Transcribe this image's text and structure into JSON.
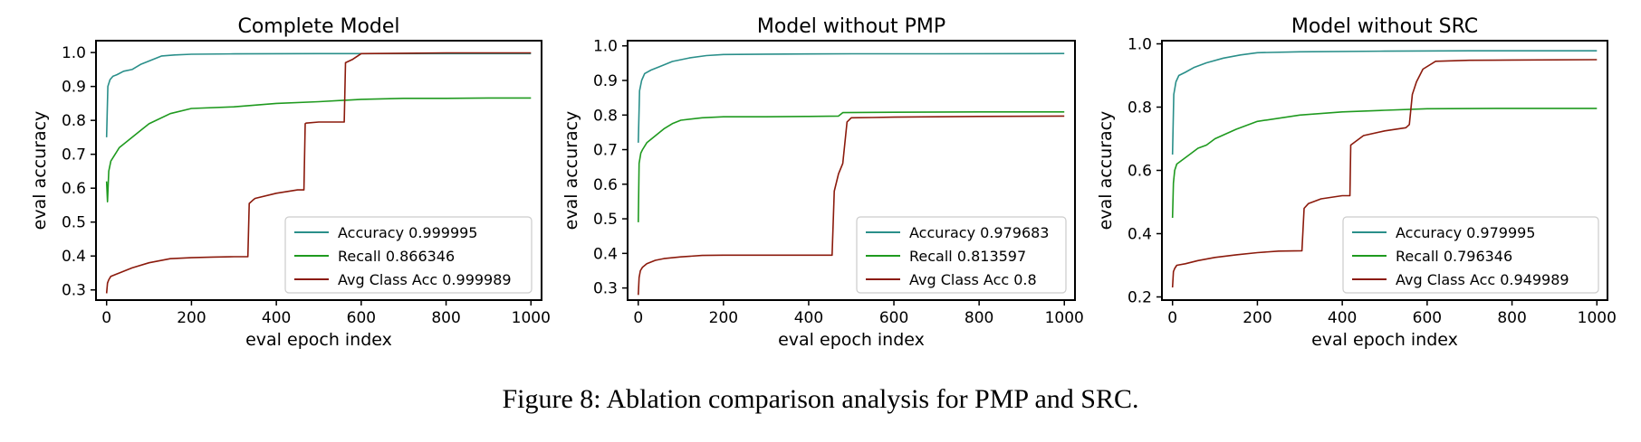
{
  "caption": "Figure 8: Ablation comparison analysis for PMP and SRC.",
  "colors": {
    "accuracy": "#2a8f8a",
    "recall": "#1f9a1f",
    "avg_class": "#8b1a0c"
  },
  "chart_data": [
    {
      "type": "line",
      "title": "Complete Model",
      "xlabel": "eval epoch index",
      "ylabel": "eval accuracy",
      "xlim": [
        -25,
        1025
      ],
      "ylim": [
        0.27,
        1.035
      ],
      "xticks": [
        0,
        200,
        400,
        600,
        800,
        1000
      ],
      "yticks": [
        0.3,
        0.4,
        0.5,
        0.6,
        0.7,
        0.8,
        0.9,
        1.0
      ],
      "ytick_labels": [
        "0.3",
        "0.4",
        "0.5",
        "0.6",
        "0.7",
        "0.8",
        "0.9",
        "1.0"
      ],
      "grid": false,
      "legend_position": "lower-right",
      "series": [
        {
          "name": "Accuracy",
          "final": "0.999995",
          "color": "#2a8f8a",
          "x": [
            0,
            3,
            8,
            15,
            25,
            40,
            60,
            80,
            100,
            130,
            160,
            200,
            300,
            500,
            700,
            1000
          ],
          "y": [
            0.75,
            0.9,
            0.92,
            0.93,
            0.935,
            0.945,
            0.95,
            0.965,
            0.975,
            0.99,
            0.993,
            0.995,
            0.996,
            0.997,
            0.997,
            0.997
          ]
        },
        {
          "name": "Recall",
          "final": "0.866346",
          "color": "#1f9a1f",
          "x": [
            0,
            2,
            5,
            10,
            20,
            30,
            50,
            80,
            100,
            150,
            200,
            300,
            400,
            500,
            600,
            700,
            800,
            900,
            1000
          ],
          "y": [
            0.62,
            0.56,
            0.65,
            0.68,
            0.7,
            0.72,
            0.74,
            0.77,
            0.79,
            0.82,
            0.835,
            0.84,
            0.85,
            0.855,
            0.862,
            0.865,
            0.865,
            0.866,
            0.866
          ]
        },
        {
          "name": "Avg Class Acc",
          "final": "0.999989",
          "color": "#8b1a0c",
          "x": [
            0,
            2,
            5,
            10,
            30,
            60,
            100,
            150,
            200,
            250,
            300,
            333,
            336,
            345,
            350,
            400,
            450,
            465,
            468,
            470,
            500,
            560,
            563,
            580,
            600,
            700,
            800,
            900,
            1000
          ],
          "y": [
            0.29,
            0.32,
            0.33,
            0.34,
            0.35,
            0.365,
            0.38,
            0.392,
            0.395,
            0.397,
            0.398,
            0.398,
            0.555,
            0.565,
            0.57,
            0.585,
            0.595,
            0.595,
            0.79,
            0.792,
            0.795,
            0.795,
            0.97,
            0.98,
            0.997,
            0.998,
            0.999,
            0.999,
            0.999
          ]
        }
      ]
    },
    {
      "type": "line",
      "title": "Model without PMP",
      "xlabel": "eval epoch index",
      "ylabel": "eval accuracy",
      "xlim": [
        -25,
        1025
      ],
      "ylim": [
        0.265,
        1.015
      ],
      "xticks": [
        0,
        200,
        400,
        600,
        800,
        1000
      ],
      "yticks": [
        0.3,
        0.4,
        0.5,
        0.6,
        0.7,
        0.8,
        0.9,
        1.0
      ],
      "ytick_labels": [
        "0.3",
        "0.4",
        "0.5",
        "0.6",
        "0.7",
        "0.8",
        "0.9",
        "1.0"
      ],
      "grid": false,
      "legend_position": "lower-right",
      "series": [
        {
          "name": "Accuracy",
          "final": "0.979683",
          "color": "#2a8f8a",
          "x": [
            0,
            3,
            8,
            15,
            30,
            50,
            80,
            120,
            160,
            200,
            300,
            500,
            700,
            1000
          ],
          "y": [
            0.72,
            0.87,
            0.9,
            0.92,
            0.93,
            0.94,
            0.955,
            0.965,
            0.972,
            0.975,
            0.976,
            0.977,
            0.977,
            0.978
          ]
        },
        {
          "name": "Recall",
          "final": "0.813597",
          "color": "#1f9a1f",
          "x": [
            0,
            2,
            6,
            10,
            20,
            40,
            60,
            80,
            100,
            150,
            200,
            300,
            400,
            470,
            480,
            600,
            800,
            1000
          ],
          "y": [
            0.49,
            0.66,
            0.69,
            0.7,
            0.72,
            0.74,
            0.76,
            0.775,
            0.785,
            0.792,
            0.795,
            0.795,
            0.796,
            0.797,
            0.807,
            0.808,
            0.809,
            0.809
          ]
        },
        {
          "name": "Avg Class Acc",
          "final": "0.8",
          "color": "#8b1a0c",
          "x": [
            0,
            2,
            5,
            10,
            20,
            40,
            60,
            100,
            150,
            200,
            300,
            400,
            455,
            460,
            470,
            480,
            490,
            500,
            550,
            600,
            700,
            800,
            1000
          ],
          "y": [
            0.28,
            0.33,
            0.35,
            0.36,
            0.37,
            0.38,
            0.385,
            0.39,
            0.394,
            0.395,
            0.395,
            0.395,
            0.395,
            0.58,
            0.63,
            0.66,
            0.78,
            0.792,
            0.793,
            0.794,
            0.795,
            0.796,
            0.797
          ]
        }
      ]
    },
    {
      "type": "line",
      "title": "Model without SRC",
      "xlabel": "eval epoch index",
      "ylabel": "eval accuracy",
      "xlim": [
        -25,
        1025
      ],
      "ylim": [
        0.19,
        1.01
      ],
      "xticks": [
        0,
        200,
        400,
        600,
        800,
        1000
      ],
      "yticks": [
        0.2,
        0.4,
        0.6,
        0.8,
        1.0
      ],
      "ytick_labels": [
        "0.2",
        "0.4",
        "0.6",
        "0.8",
        "1.0"
      ],
      "grid": false,
      "legend_position": "lower-right",
      "series": [
        {
          "name": "Accuracy",
          "final": "0.979995",
          "color": "#2a8f8a",
          "x": [
            0,
            3,
            8,
            15,
            30,
            50,
            80,
            120,
            160,
            200,
            300,
            500,
            700,
            1000
          ],
          "y": [
            0.65,
            0.84,
            0.88,
            0.9,
            0.91,
            0.925,
            0.94,
            0.955,
            0.965,
            0.972,
            0.975,
            0.977,
            0.978,
            0.978
          ]
        },
        {
          "name": "Recall",
          "final": "0.796346",
          "color": "#1f9a1f",
          "x": [
            0,
            2,
            5,
            10,
            20,
            40,
            60,
            80,
            100,
            150,
            200,
            300,
            400,
            500,
            600,
            800,
            1000
          ],
          "y": [
            0.45,
            0.56,
            0.6,
            0.62,
            0.63,
            0.65,
            0.67,
            0.68,
            0.7,
            0.73,
            0.755,
            0.775,
            0.785,
            0.79,
            0.795,
            0.796,
            0.796
          ]
        },
        {
          "name": "Avg Class Acc",
          "final": "0.949989",
          "color": "#8b1a0c",
          "x": [
            0,
            2,
            5,
            10,
            30,
            60,
            100,
            150,
            200,
            250,
            305,
            310,
            320,
            350,
            400,
            418,
            420,
            450,
            500,
            550,
            558,
            565,
            575,
            590,
            620,
            700,
            800,
            1000
          ],
          "y": [
            0.23,
            0.28,
            0.29,
            0.3,
            0.305,
            0.315,
            0.325,
            0.333,
            0.34,
            0.345,
            0.346,
            0.48,
            0.495,
            0.51,
            0.52,
            0.52,
            0.68,
            0.71,
            0.725,
            0.735,
            0.745,
            0.84,
            0.88,
            0.92,
            0.945,
            0.948,
            0.949,
            0.95
          ]
        }
      ]
    }
  ]
}
